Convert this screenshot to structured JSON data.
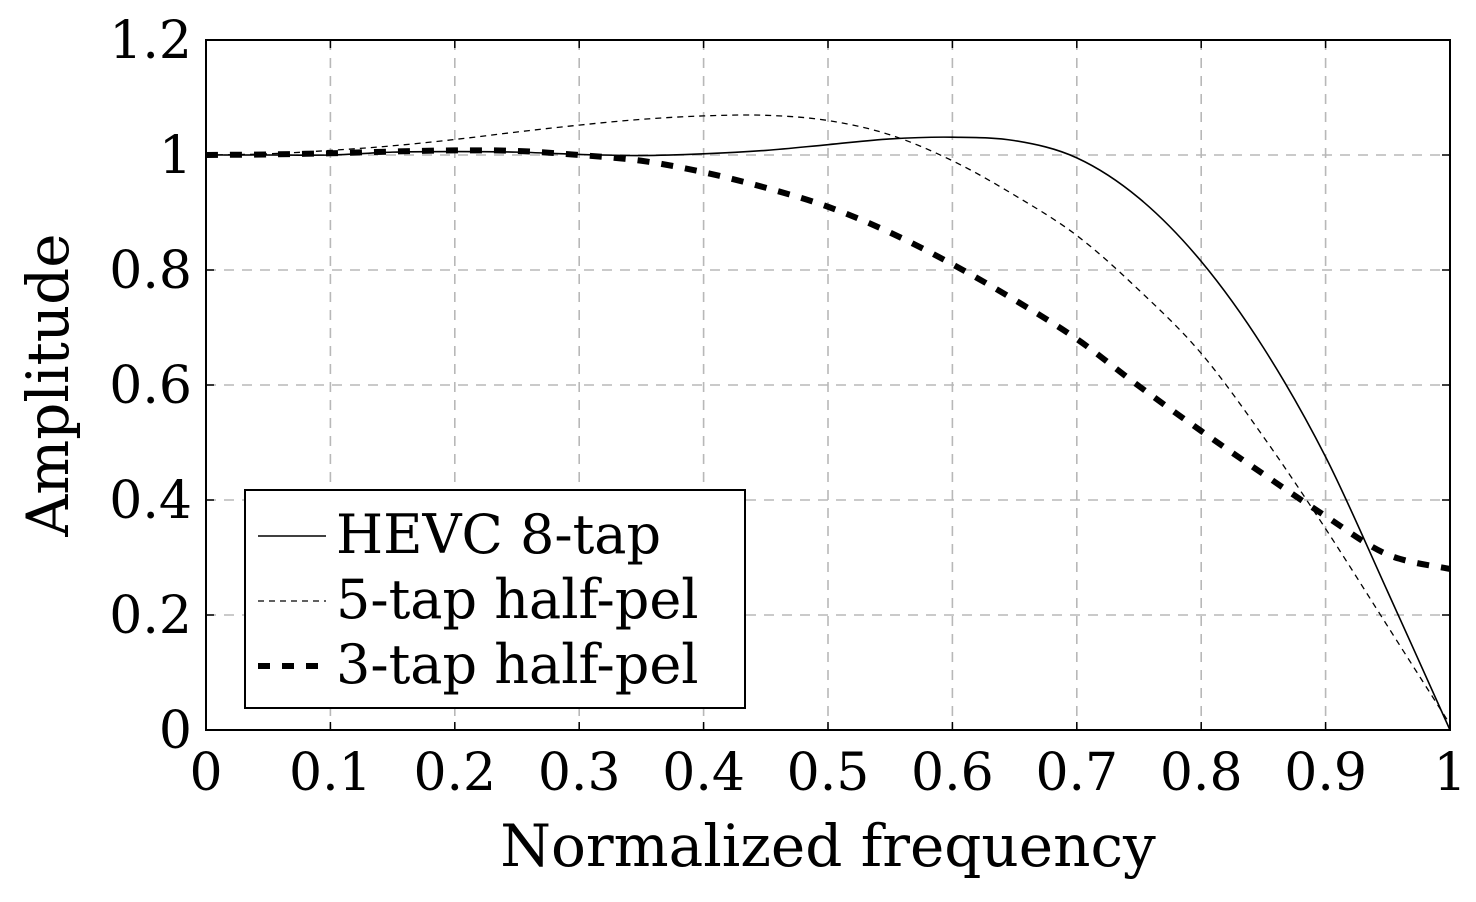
{
  "chart_data": {
    "type": "line",
    "title": "",
    "xlabel": "Normalized frequency",
    "ylabel": "Amplitude",
    "xlim": [
      0,
      1
    ],
    "ylim": [
      0,
      1.2
    ],
    "grid": true,
    "legend_position": "bottom-left",
    "x_ticks": [
      "0",
      "0.1",
      "0.2",
      "0.3",
      "0.4",
      "0.5",
      "0.6",
      "0.7",
      "0.8",
      "0.9",
      "1"
    ],
    "y_ticks": [
      "0",
      "0.2",
      "0.4",
      "0.6",
      "0.8",
      "1",
      "1.2"
    ],
    "series": [
      {
        "name": "HEVC 8-tap",
        "style": "solid",
        "x": [
          0,
          0.05,
          0.1,
          0.15,
          0.2,
          0.25,
          0.3,
          0.35,
          0.4,
          0.45,
          0.5,
          0.55,
          0.6,
          0.65,
          0.7,
          0.75,
          0.8,
          0.85,
          0.9,
          0.95,
          1.0
        ],
        "y": [
          1.0,
          1.0,
          1.0,
          1.005,
          1.006,
          1.005,
          1.001,
          0.999,
          1.002,
          1.008,
          1.018,
          1.028,
          1.031,
          1.025,
          0.995,
          0.925,
          0.815,
          0.665,
          0.475,
          0.24,
          0.0
        ]
      },
      {
        "name": "5-tap half-pel",
        "style": "dashed-thin",
        "x": [
          0,
          0.05,
          0.1,
          0.15,
          0.2,
          0.25,
          0.3,
          0.35,
          0.4,
          0.45,
          0.5,
          0.55,
          0.6,
          0.65,
          0.7,
          0.75,
          0.8,
          0.85,
          0.9,
          0.95,
          1.0
        ],
        "y": [
          1.0,
          1.002,
          1.008,
          1.016,
          1.027,
          1.04,
          1.052,
          1.062,
          1.068,
          1.069,
          1.06,
          1.035,
          0.99,
          0.93,
          0.86,
          0.765,
          0.655,
          0.51,
          0.35,
          0.18,
          0.01
        ]
      },
      {
        "name": "3-tap half-pel",
        "style": "dashed-thick",
        "x": [
          0,
          0.05,
          0.1,
          0.15,
          0.2,
          0.25,
          0.3,
          0.35,
          0.4,
          0.45,
          0.5,
          0.55,
          0.6,
          0.65,
          0.7,
          0.75,
          0.8,
          0.85,
          0.9,
          0.95,
          1.0
        ],
        "y": [
          1.0,
          1.001,
          1.003,
          1.006,
          1.008,
          1.007,
          1.0,
          0.99,
          0.97,
          0.943,
          0.91,
          0.865,
          0.81,
          0.748,
          0.68,
          0.598,
          0.52,
          0.445,
          0.372,
          0.305,
          0.28
        ]
      }
    ]
  }
}
